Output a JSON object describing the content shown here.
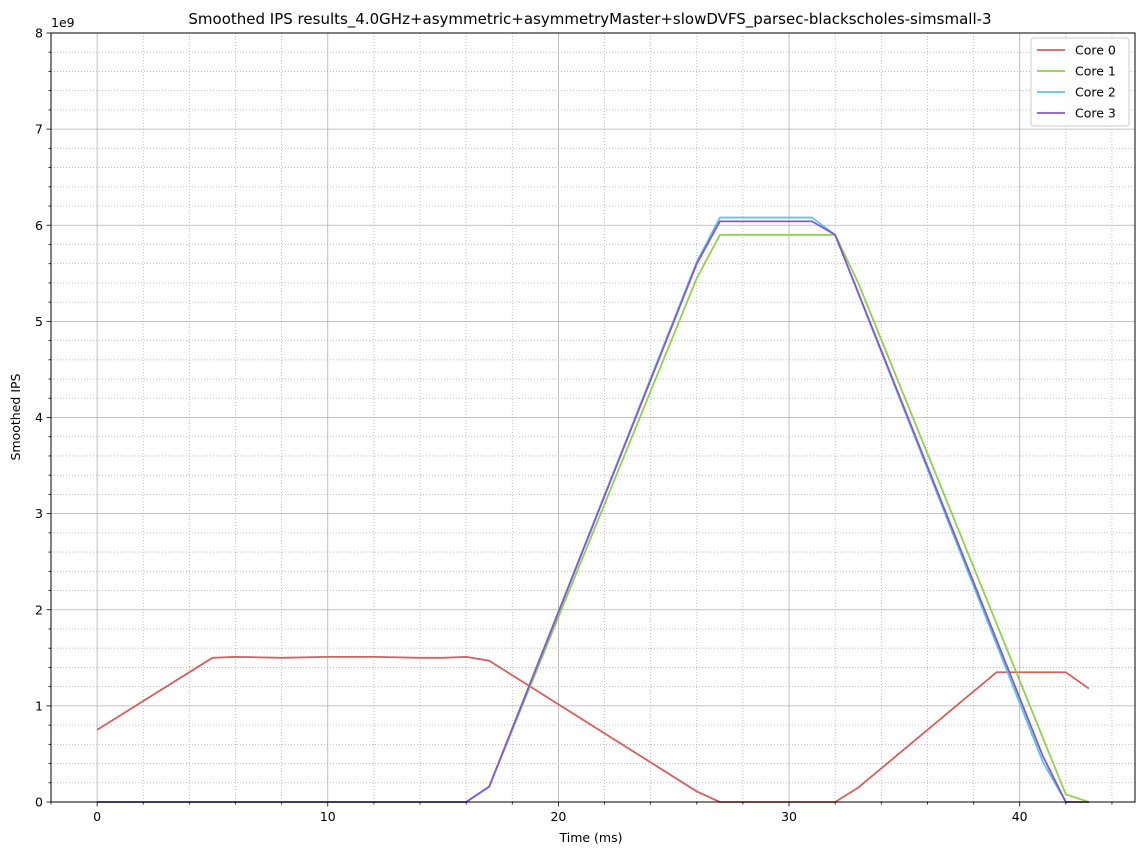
{
  "chart_data": {
    "type": "line",
    "title": "Smoothed IPS results_4.0GHz+asymmetric+asymmetryMaster+slowDVFS_parsec-blackscholes-simsmall-3",
    "xlabel": "Time (ms)",
    "ylabel": "Smoothed IPS",
    "y_offset_label": "1e9",
    "xlim": [
      -2,
      45
    ],
    "ylim": [
      0,
      8
    ],
    "x_ticks": [
      0,
      10,
      20,
      30,
      40
    ],
    "y_ticks": [
      0,
      1,
      2,
      3,
      4,
      5,
      6,
      7,
      8
    ],
    "grid": true,
    "legend_position": "top-right",
    "series": [
      {
        "name": "Core 0",
        "color": "#d65f5f",
        "points": [
          [
            0,
            0.75
          ],
          [
            5,
            1.5
          ],
          [
            6,
            1.51
          ],
          [
            8,
            1.5
          ],
          [
            10,
            1.51
          ],
          [
            12,
            1.51
          ],
          [
            14,
            1.5
          ],
          [
            15,
            1.5
          ],
          [
            16,
            1.51
          ],
          [
            17,
            1.47
          ],
          [
            26,
            0.11
          ],
          [
            27,
            0.0
          ],
          [
            32,
            0.0
          ],
          [
            33,
            0.15
          ],
          [
            39,
            1.35
          ],
          [
            42,
            1.35
          ],
          [
            43,
            1.18
          ]
        ]
      },
      {
        "name": "Core 1",
        "color": "#8fd14f",
        "points": [
          [
            0,
            0.0
          ],
          [
            16,
            0.0
          ],
          [
            17,
            0.16
          ],
          [
            26,
            5.45
          ],
          [
            27,
            5.9
          ],
          [
            32,
            5.9
          ],
          [
            33,
            5.4
          ],
          [
            42,
            0.08
          ],
          [
            43,
            0.0
          ]
        ]
      },
      {
        "name": "Core 2",
        "color": "#5bc9df",
        "points": [
          [
            0,
            0.0
          ],
          [
            16,
            0.0
          ],
          [
            17,
            0.16
          ],
          [
            26,
            5.62
          ],
          [
            27,
            6.08
          ],
          [
            31,
            6.08
          ],
          [
            32,
            5.9
          ],
          [
            41,
            0.42
          ],
          [
            42,
            0.0
          ],
          [
            43,
            0.0
          ]
        ]
      },
      {
        "name": "Core 3",
        "color": "#8a56d0",
        "points": [
          [
            0,
            0.0
          ],
          [
            16,
            0.0
          ],
          [
            17,
            0.16
          ],
          [
            26,
            5.6
          ],
          [
            27,
            6.04
          ],
          [
            31,
            6.04
          ],
          [
            32,
            5.9
          ],
          [
            41,
            0.48
          ],
          [
            42,
            0.0
          ],
          [
            43,
            0.0
          ]
        ]
      }
    ]
  }
}
